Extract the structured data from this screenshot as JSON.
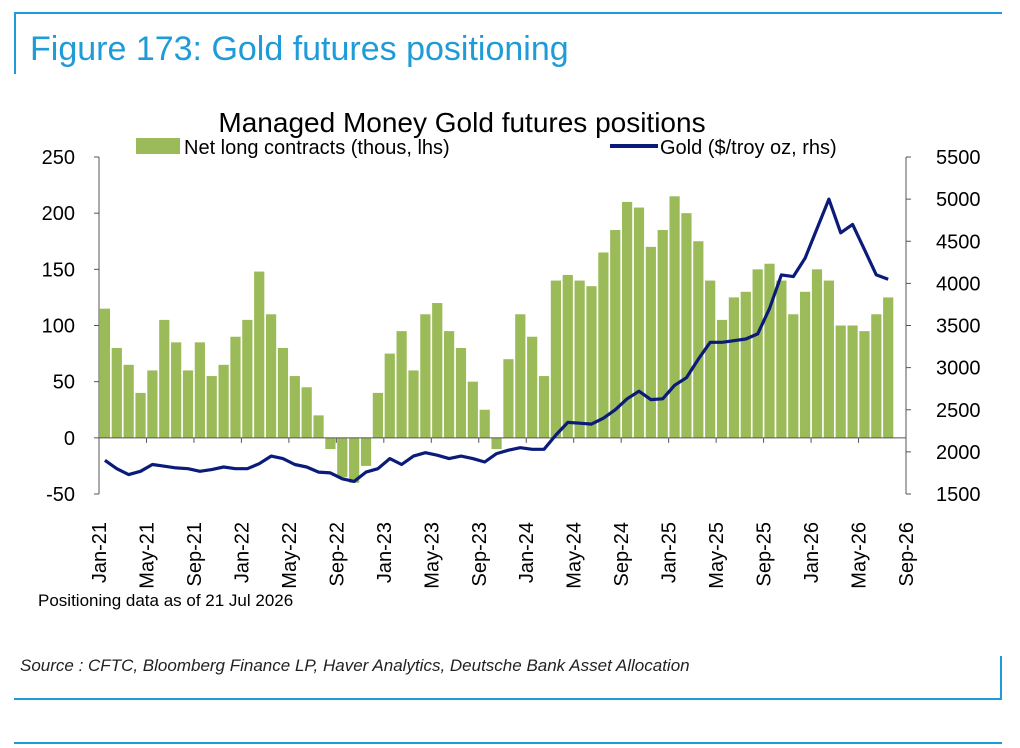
{
  "figure": {
    "title": "Figure 173: Gold futures positioning",
    "source": "Source : CFTC, Bloomberg Finance LP, Haver Analytics, Deutsche Bank Asset Allocation"
  },
  "colors": {
    "accent": "#1f9bd7",
    "bars": "#9bbb59",
    "line": "#0b1b7a"
  },
  "chart_data": {
    "type": "bar",
    "title": "Managed Money Gold futures positions",
    "note": "Positioning data as of 21 Jul 2026",
    "x_ticks": [
      "Jan-21",
      "May-21",
      "Sep-21",
      "Jan-22",
      "May-22",
      "Sep-22",
      "Jan-23",
      "May-23",
      "Sep-23",
      "Jan-24",
      "May-24",
      "Sep-24",
      "Jan-25",
      "May-25",
      "Sep-25",
      "Jan-26",
      "May-26",
      "Sep-26"
    ],
    "y_left": {
      "ticks": [
        -50,
        0,
        50,
        100,
        150,
        200,
        250
      ],
      "ylim": [
        -50,
        250
      ]
    },
    "y_right": {
      "ticks": [
        1500,
        2000,
        2500,
        3000,
        3500,
        4000,
        4500,
        5000,
        5500
      ],
      "ylim": [
        1500,
        5500
      ]
    },
    "xlim": [
      "2021-01",
      "2026-09"
    ],
    "legend_position": "top",
    "series": [
      {
        "name": "Net long contracts (thous, lhs)",
        "type": "bar",
        "axis": "left",
        "points": [
          [
            "2021-01",
            115
          ],
          [
            "2021-02",
            80
          ],
          [
            "2021-03",
            65
          ],
          [
            "2021-04",
            40
          ],
          [
            "2021-05",
            60
          ],
          [
            "2021-06",
            105
          ],
          [
            "2021-07",
            85
          ],
          [
            "2021-08",
            60
          ],
          [
            "2021-09",
            85
          ],
          [
            "2021-10",
            55
          ],
          [
            "2021-11",
            65
          ],
          [
            "2021-12",
            90
          ],
          [
            "2022-01",
            105
          ],
          [
            "2022-02",
            148
          ],
          [
            "2022-03",
            110
          ],
          [
            "2022-04",
            80
          ],
          [
            "2022-05",
            55
          ],
          [
            "2022-06",
            45
          ],
          [
            "2022-07",
            20
          ],
          [
            "2022-08",
            -10
          ],
          [
            "2022-09",
            -35
          ],
          [
            "2022-10",
            -40
          ],
          [
            "2022-11",
            -25
          ],
          [
            "2022-12",
            40
          ],
          [
            "2023-01",
            75
          ],
          [
            "2023-02",
            95
          ],
          [
            "2023-03",
            60
          ],
          [
            "2023-04",
            110
          ],
          [
            "2023-05",
            120
          ],
          [
            "2023-06",
            95
          ],
          [
            "2023-07",
            80
          ],
          [
            "2023-08",
            50
          ],
          [
            "2023-09",
            25
          ],
          [
            "2023-10",
            -10
          ],
          [
            "2023-11",
            70
          ],
          [
            "2023-12",
            110
          ],
          [
            "2024-01",
            90
          ],
          [
            "2024-02",
            55
          ],
          [
            "2024-03",
            140
          ],
          [
            "2024-04",
            145
          ],
          [
            "2024-05",
            140
          ],
          [
            "2024-06",
            135
          ],
          [
            "2024-07",
            165
          ],
          [
            "2024-08",
            185
          ],
          [
            "2024-09",
            210
          ],
          [
            "2024-10",
            205
          ],
          [
            "2024-11",
            170
          ],
          [
            "2024-12",
            185
          ],
          [
            "2025-01",
            215
          ],
          [
            "2025-02",
            200
          ],
          [
            "2025-03",
            175
          ],
          [
            "2025-04",
            140
          ],
          [
            "2025-05",
            105
          ],
          [
            "2025-06",
            125
          ],
          [
            "2025-07",
            130
          ],
          [
            "2025-08",
            150
          ],
          [
            "2025-09",
            155
          ],
          [
            "2025-10",
            140
          ],
          [
            "2025-11",
            110
          ],
          [
            "2025-12",
            130
          ],
          [
            "2026-01",
            150
          ],
          [
            "2026-02",
            140
          ],
          [
            "2026-03",
            100
          ],
          [
            "2026-04",
            100
          ],
          [
            "2026-05",
            95
          ],
          [
            "2026-06",
            110
          ],
          [
            "2026-07",
            125
          ]
        ]
      },
      {
        "name": "Gold ($/troy oz, rhs)",
        "type": "line",
        "axis": "right",
        "points": [
          [
            "2021-01",
            1900
          ],
          [
            "2021-02",
            1800
          ],
          [
            "2021-03",
            1730
          ],
          [
            "2021-04",
            1770
          ],
          [
            "2021-05",
            1850
          ],
          [
            "2021-06",
            1830
          ],
          [
            "2021-07",
            1810
          ],
          [
            "2021-08",
            1800
          ],
          [
            "2021-09",
            1770
          ],
          [
            "2021-10",
            1790
          ],
          [
            "2021-11",
            1820
          ],
          [
            "2021-12",
            1800
          ],
          [
            "2022-01",
            1800
          ],
          [
            "2022-02",
            1860
          ],
          [
            "2022-03",
            1950
          ],
          [
            "2022-04",
            1920
          ],
          [
            "2022-05",
            1850
          ],
          [
            "2022-06",
            1820
          ],
          [
            "2022-07",
            1760
          ],
          [
            "2022-08",
            1750
          ],
          [
            "2022-09",
            1680
          ],
          [
            "2022-10",
            1650
          ],
          [
            "2022-11",
            1760
          ],
          [
            "2022-12",
            1800
          ],
          [
            "2023-01",
            1920
          ],
          [
            "2023-02",
            1850
          ],
          [
            "2023-03",
            1950
          ],
          [
            "2023-04",
            1990
          ],
          [
            "2023-05",
            1960
          ],
          [
            "2023-06",
            1920
          ],
          [
            "2023-07",
            1950
          ],
          [
            "2023-08",
            1920
          ],
          [
            "2023-09",
            1880
          ],
          [
            "2023-10",
            1980
          ],
          [
            "2023-11",
            2020
          ],
          [
            "2023-12",
            2050
          ],
          [
            "2024-01",
            2030
          ],
          [
            "2024-02",
            2030
          ],
          [
            "2024-03",
            2200
          ],
          [
            "2024-04",
            2350
          ],
          [
            "2024-05",
            2340
          ],
          [
            "2024-06",
            2330
          ],
          [
            "2024-07",
            2400
          ],
          [
            "2024-08",
            2500
          ],
          [
            "2024-09",
            2630
          ],
          [
            "2024-10",
            2720
          ],
          [
            "2024-11",
            2620
          ],
          [
            "2024-12",
            2630
          ],
          [
            "2025-01",
            2790
          ],
          [
            "2025-02",
            2880
          ],
          [
            "2025-03",
            3100
          ],
          [
            "2025-04",
            3300
          ],
          [
            "2025-05",
            3300
          ],
          [
            "2025-06",
            3320
          ],
          [
            "2025-07",
            3340
          ],
          [
            "2025-08",
            3400
          ],
          [
            "2025-09",
            3700
          ],
          [
            "2025-10",
            4100
          ],
          [
            "2025-11",
            4080
          ],
          [
            "2025-12",
            4300
          ],
          [
            "2026-01",
            4650
          ],
          [
            "2026-02",
            5000
          ],
          [
            "2026-03",
            4600
          ],
          [
            "2026-04",
            4700
          ],
          [
            "2026-05",
            4400
          ],
          [
            "2026-06",
            4100
          ],
          [
            "2026-07",
            4050
          ]
        ]
      }
    ]
  }
}
